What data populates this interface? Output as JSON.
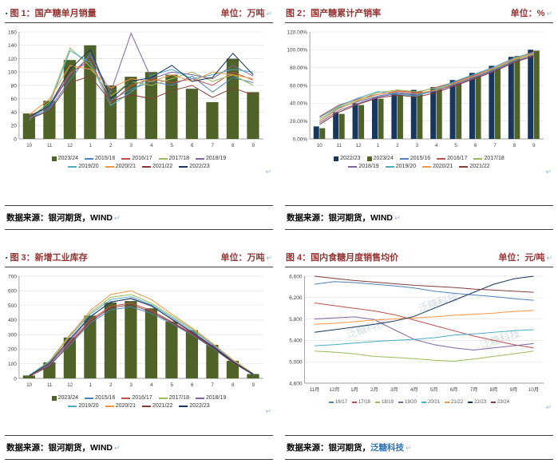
{
  "marks": {
    "return_mark": "↵",
    "bullet": "▪"
  },
  "chart_data": [
    {
      "id": "fig1",
      "type": "bar",
      "title": "图 1：国产糖单月销量",
      "unit": "单位：万吨",
      "source": "数据来源：银河期货，WIND",
      "categories": [
        "10",
        "11",
        "12",
        "1",
        "2",
        "3",
        "4",
        "5",
        "6",
        "7",
        "8",
        "9"
      ],
      "ylim": [
        0,
        160
      ],
      "ytick_step": 20,
      "ytick_labels": [
        "0",
        "20",
        "40",
        "60",
        "80",
        "100",
        "120",
        "140",
        "160"
      ],
      "series": [
        {
          "name": "2023/24",
          "type": "bar",
          "color": "#4F6228",
          "values": [
            38,
            57,
            118,
            140,
            80,
            93,
            100,
            96,
            75,
            55,
            120,
            70
          ]
        },
        {
          "name": "2015/16",
          "type": "line",
          "color": "#4F81BD",
          "values": [
            30,
            45,
            88,
            128,
            58,
            74,
            86,
            80,
            94,
            70,
            92,
            84
          ]
        },
        {
          "name": "2016/17",
          "type": "line",
          "color": "#C0504D",
          "values": [
            34,
            50,
            98,
            118,
            54,
            80,
            90,
            84,
            90,
            80,
            100,
            88
          ]
        },
        {
          "name": "2017/18",
          "type": "line",
          "color": "#9BBB59",
          "values": [
            30,
            56,
            136,
            108,
            64,
            86,
            80,
            90,
            100,
            86,
            96,
            80
          ]
        },
        {
          "name": "2018/19",
          "type": "line",
          "color": "#8064A2",
          "values": [
            32,
            48,
            96,
            124,
            70,
            158,
            90,
            100,
            96,
            90,
            110,
            94
          ]
        },
        {
          "name": "2019/20",
          "type": "line",
          "color": "#4BACC6",
          "values": [
            28,
            52,
            132,
            114,
            50,
            70,
            95,
            104,
            90,
            96,
            104,
            100
          ]
        },
        {
          "name": "2020/21",
          "type": "line",
          "color": "#F79646",
          "values": [
            36,
            60,
            110,
            104,
            76,
            90,
            86,
            96,
            86,
            100,
            96,
            90
          ]
        },
        {
          "name": "2021/22",
          "type": "line",
          "color": "#843C39",
          "values": [
            30,
            42,
            84,
            94,
            56,
            66,
            60,
            72,
            80,
            62,
            76,
            66
          ]
        },
        {
          "name": "2022/23",
          "type": "line",
          "color": "#17375E",
          "values": [
            33,
            50,
            104,
            134,
            60,
            86,
            92,
            110,
            86,
            92,
            128,
            96
          ]
        }
      ]
    },
    {
      "id": "fig2",
      "type": "bar",
      "title": "图 2：国产糖累计产销率",
      "unit": "单位：%",
      "source": "数据来源：银河期货，WIND",
      "categories": [
        "10",
        "11",
        "12",
        "1",
        "2",
        "3",
        "4",
        "5",
        "6",
        "7",
        "8",
        "9"
      ],
      "ylim": [
        0,
        120
      ],
      "ytick_step": 20,
      "ytick_labels": [
        "0.00%",
        "20.00%",
        "40.00%",
        "60.00%",
        "80.00%",
        "100.00%",
        "120.00%"
      ],
      "series": [
        {
          "name": "2022/23",
          "type": "bar",
          "color": "#17375E",
          "values": [
            14,
            30,
            40,
            46,
            52,
            55,
            58,
            66,
            74,
            82,
            92,
            100
          ]
        },
        {
          "name": "2023/24",
          "type": "bar",
          "color": "#4F6228",
          "values": [
            12,
            28,
            38,
            45,
            50,
            53,
            57,
            63,
            72,
            80,
            93,
            99
          ]
        },
        {
          "name": "2015/16",
          "type": "line",
          "color": "#4F81BD",
          "values": [
            20,
            35,
            42,
            48,
            52,
            50,
            55,
            62,
            70,
            78,
            88,
            96
          ]
        },
        {
          "name": "2016/17",
          "type": "line",
          "color": "#C0504D",
          "values": [
            25,
            38,
            45,
            50,
            54,
            52,
            58,
            64,
            72,
            80,
            90,
            98
          ]
        },
        {
          "name": "2017/18",
          "type": "line",
          "color": "#9BBB59",
          "values": [
            22,
            36,
            44,
            52,
            55,
            53,
            57,
            63,
            71,
            79,
            89,
            95
          ]
        },
        {
          "name": "2018/19",
          "type": "line",
          "color": "#8064A2",
          "values": [
            18,
            32,
            40,
            47,
            51,
            49,
            54,
            61,
            69,
            77,
            87,
            94
          ]
        },
        {
          "name": "2019/20",
          "type": "line",
          "color": "#4BACC6",
          "values": [
            24,
            37,
            46,
            53,
            50,
            48,
            56,
            65,
            73,
            81,
            91,
            97
          ]
        },
        {
          "name": "2020/21",
          "type": "line",
          "color": "#F79646",
          "values": [
            20,
            34,
            43,
            50,
            53,
            51,
            55,
            63,
            71,
            80,
            90,
            96
          ]
        },
        {
          "name": "2021/22",
          "type": "line",
          "color": "#843C39",
          "values": [
            16,
            30,
            39,
            46,
            49,
            47,
            52,
            60,
            68,
            76,
            86,
            93
          ]
        }
      ]
    },
    {
      "id": "fig3",
      "type": "bar",
      "title": "图 3：新增工业库存",
      "unit": "单位：万吨",
      "source": "数据来源：银河期货，WIND",
      "categories": [
        "10",
        "11",
        "12",
        "1",
        "2",
        "3",
        "4",
        "5",
        "6",
        "7",
        "8",
        "9"
      ],
      "ylim": [
        0,
        700
      ],
      "ytick_step": 100,
      "ytick_labels": [
        "0",
        "100",
        "200",
        "300",
        "400",
        "500",
        "600",
        "700"
      ],
      "series": [
        {
          "name": "2023/24",
          "type": "bar",
          "color": "#4F6228",
          "values": [
            20,
            110,
            280,
            430,
            520,
            530,
            480,
            390,
            330,
            230,
            120,
            30
          ]
        },
        {
          "name": "2015/16",
          "type": "line",
          "color": "#4F81BD",
          "values": [
            15,
            90,
            230,
            380,
            470,
            490,
            445,
            375,
            298,
            208,
            108,
            24
          ]
        },
        {
          "name": "2016/17",
          "type": "line",
          "color": "#C0504D",
          "values": [
            18,
            100,
            250,
            400,
            495,
            515,
            465,
            388,
            308,
            218,
            114,
            28
          ]
        },
        {
          "name": "2017/18",
          "type": "line",
          "color": "#9BBB59",
          "values": [
            20,
            120,
            300,
            450,
            555,
            575,
            515,
            428,
            338,
            238,
            128,
            34
          ]
        },
        {
          "name": "2018/19",
          "type": "line",
          "color": "#8064A2",
          "values": [
            16,
            95,
            260,
            420,
            525,
            545,
            495,
            408,
            318,
            224,
            119,
            30
          ]
        },
        {
          "name": "2019/20",
          "type": "line",
          "color": "#4BACC6",
          "values": [
            22,
            115,
            290,
            440,
            540,
            560,
            505,
            418,
            328,
            233,
            124,
            32
          ]
        },
        {
          "name": "2020/21",
          "type": "line",
          "color": "#F79646",
          "values": [
            18,
            108,
            295,
            465,
            575,
            600,
            540,
            440,
            345,
            240,
            126,
            30
          ]
        },
        {
          "name": "2021/22",
          "type": "line",
          "color": "#843C39",
          "values": [
            14,
            85,
            240,
            390,
            485,
            505,
            455,
            382,
            302,
            213,
            110,
            26
          ]
        },
        {
          "name": "2022/23",
          "type": "line",
          "color": "#17375E",
          "values": [
            19,
            105,
            272,
            424,
            522,
            548,
            498,
            404,
            314,
            220,
            116,
            28
          ]
        }
      ]
    },
    {
      "id": "fig4",
      "type": "line",
      "title": "图 4：国内食糖月度销售均价",
      "unit": "单位：元/吨",
      "source": "数据来源：银河期货，",
      "source_link": "泛糖科技",
      "watermark": "泛糖科技",
      "legend_size": "small",
      "categories": [
        "11月",
        "12月",
        "1月",
        "2月",
        "3月",
        "4月",
        "5月",
        "6月",
        "7月",
        "8月",
        "9月",
        "10月"
      ],
      "ylim": [
        4600,
        6600
      ],
      "ytick_step": 400,
      "ytick_labels": [
        "4,600",
        "5,000",
        "5,400",
        "5,800",
        "6,200",
        "6,600"
      ],
      "series": [
        {
          "name": "16/17",
          "type": "line",
          "color": "#4F81BD",
          "values": [
            6450,
            6500,
            6480,
            6450,
            6420,
            6380,
            6320,
            6280,
            6250,
            6220,
            6180,
            6150
          ]
        },
        {
          "name": "17/18",
          "type": "line",
          "color": "#C0504D",
          "values": [
            6100,
            6050,
            6000,
            5950,
            5880,
            5780,
            5680,
            5580,
            5480,
            5400,
            5320,
            5260
          ]
        },
        {
          "name": "18/19",
          "type": "line",
          "color": "#9BBB59",
          "values": [
            5200,
            5180,
            5150,
            5100,
            5080,
            5060,
            5030,
            5010,
            5050,
            5100,
            5150,
            5200
          ]
        },
        {
          "name": "19/20",
          "type": "line",
          "color": "#8064A2",
          "values": [
            5800,
            5820,
            5840,
            5790,
            5600,
            5420,
            5320,
            5260,
            5220,
            5260,
            5300,
            5340
          ]
        },
        {
          "name": "20/21",
          "type": "line",
          "color": "#4BACC6",
          "values": [
            5300,
            5320,
            5350,
            5380,
            5400,
            5420,
            5450,
            5500,
            5520,
            5550,
            5580,
            5600
          ]
        },
        {
          "name": "21/22",
          "type": "line",
          "color": "#F79646",
          "values": [
            5700,
            5720,
            5750,
            5780,
            5800,
            5820,
            5840,
            5870,
            5890,
            5910,
            5940,
            5960
          ]
        },
        {
          "name": "22/23",
          "type": "line",
          "color": "#17375E",
          "values": [
            5550,
            5600,
            5650,
            5700,
            5760,
            5850,
            6000,
            6150,
            6300,
            6450,
            6550,
            6600
          ]
        },
        {
          "name": "23/24",
          "type": "line",
          "color": "#843C39",
          "values": [
            6600,
            6560,
            6520,
            6490,
            6460,
            6430,
            6410,
            6390,
            6360,
            6340,
            6320,
            6300
          ]
        }
      ]
    }
  ]
}
